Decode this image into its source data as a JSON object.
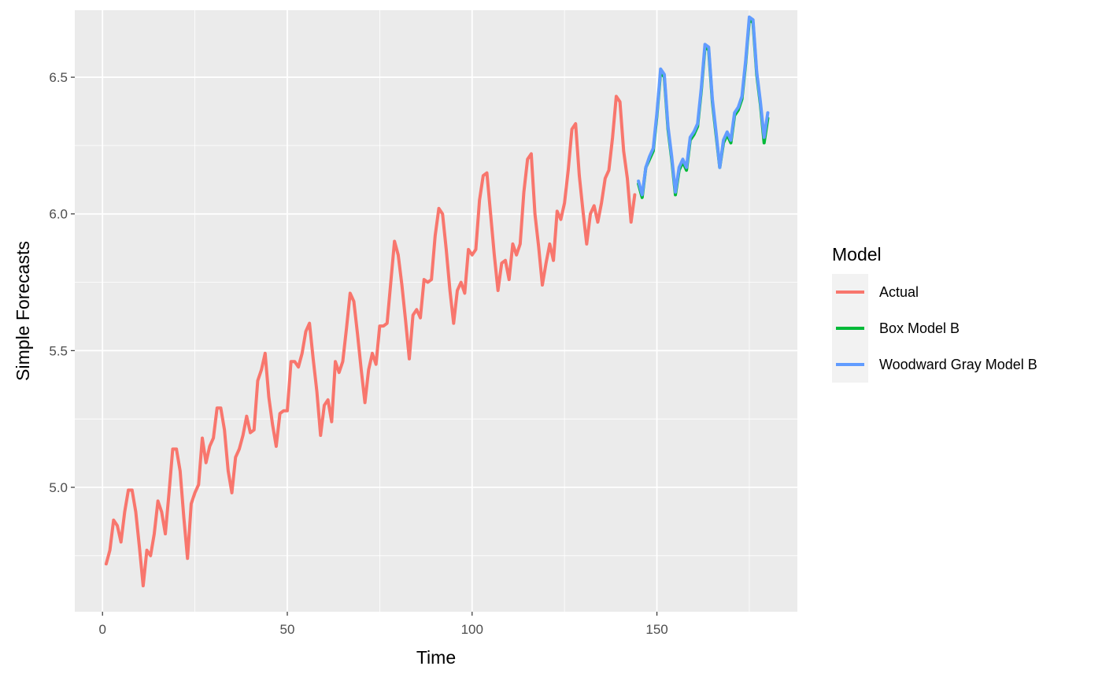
{
  "chart_data": {
    "type": "line",
    "xlabel": "Time",
    "ylabel": "Simple Forecasts",
    "xlim": [
      -7.5,
      188
    ],
    "ylim": [
      4.545,
      6.745
    ],
    "x_ticks": [
      0,
      50,
      100,
      150
    ],
    "y_ticks": [
      5.0,
      5.5,
      6.0,
      6.5
    ],
    "grid": true,
    "legend": {
      "title": "Model",
      "placement": "right"
    },
    "series": [
      {
        "name": "Actual",
        "color": "#F8766D",
        "x_start": 1,
        "values": [
          4.72,
          4.77,
          4.88,
          4.86,
          4.8,
          4.91,
          4.99,
          4.99,
          4.91,
          4.78,
          4.64,
          4.77,
          4.75,
          4.83,
          4.95,
          4.91,
          4.83,
          4.98,
          5.14,
          5.14,
          5.06,
          4.89,
          4.74,
          4.94,
          4.98,
          5.01,
          5.18,
          5.09,
          5.15,
          5.18,
          5.29,
          5.29,
          5.21,
          5.06,
          4.98,
          5.11,
          5.14,
          5.19,
          5.26,
          5.2,
          5.21,
          5.39,
          5.43,
          5.49,
          5.33,
          5.23,
          5.15,
          5.27,
          5.28,
          5.28,
          5.46,
          5.46,
          5.44,
          5.49,
          5.57,
          5.6,
          5.47,
          5.35,
          5.19,
          5.3,
          5.32,
          5.24,
          5.46,
          5.42,
          5.46,
          5.58,
          5.71,
          5.68,
          5.56,
          5.43,
          5.31,
          5.43,
          5.49,
          5.45,
          5.59,
          5.59,
          5.6,
          5.75,
          5.9,
          5.85,
          5.74,
          5.61,
          5.47,
          5.63,
          5.65,
          5.62,
          5.76,
          5.75,
          5.76,
          5.92,
          6.02,
          6.0,
          5.87,
          5.72,
          5.6,
          5.72,
          5.75,
          5.71,
          5.87,
          5.85,
          5.87,
          6.05,
          6.14,
          6.15,
          6.0,
          5.85,
          5.72,
          5.82,
          5.83,
          5.76,
          5.89,
          5.85,
          5.89,
          6.08,
          6.2,
          6.22,
          6.0,
          5.88,
          5.74,
          5.82,
          5.89,
          5.83,
          6.01,
          5.98,
          6.04,
          6.16,
          6.31,
          6.33,
          6.14,
          6.01,
          5.89,
          6.0,
          6.03,
          5.97,
          6.04,
          6.13,
          6.16,
          6.28,
          6.43,
          6.41,
          6.23,
          6.13,
          5.97,
          6.07
        ]
      },
      {
        "name": "Box Model B",
        "color": "#00BA38",
        "x_start": 145,
        "values": [
          6.11,
          6.06,
          6.17,
          6.2,
          6.23,
          6.36,
          6.52,
          6.5,
          6.31,
          6.2,
          6.07,
          6.16,
          6.19,
          6.16,
          6.27,
          6.29,
          6.32,
          6.45,
          6.61,
          6.6,
          6.41,
          6.29,
          6.17,
          6.26,
          6.29,
          6.26,
          6.36,
          6.38,
          6.42,
          6.55,
          6.71,
          6.7,
          6.51,
          6.4,
          6.26,
          6.35
        ]
      },
      {
        "name": "Woodward Gray Model B",
        "color": "#619CFF",
        "x_start": 145,
        "values": [
          6.12,
          6.07,
          6.17,
          6.21,
          6.24,
          6.37,
          6.53,
          6.51,
          6.32,
          6.21,
          6.08,
          6.17,
          6.2,
          6.17,
          6.28,
          6.3,
          6.33,
          6.46,
          6.62,
          6.61,
          6.42,
          6.3,
          6.17,
          6.27,
          6.3,
          6.27,
          6.37,
          6.39,
          6.43,
          6.56,
          6.72,
          6.71,
          6.52,
          6.41,
          6.28,
          6.37
        ]
      }
    ]
  }
}
